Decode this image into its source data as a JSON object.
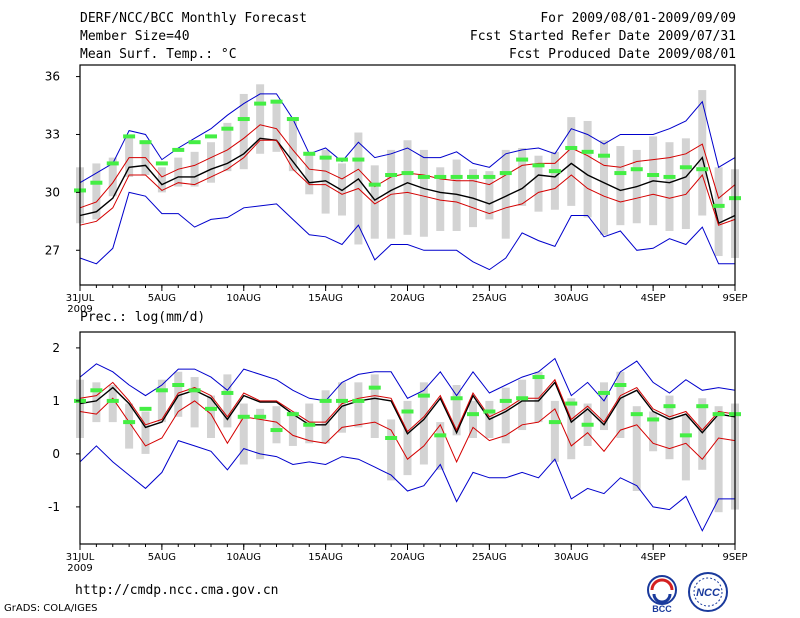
{
  "header": {
    "title": "DERF/NCC/BCC Monthly Forecast",
    "member": "Member Size=40",
    "variable": "Mean Surf. Temp.: °C",
    "period": "For 2009/08/01-2009/09/09",
    "fcst_started": "Fcst Started Refer Date 2009/07/31",
    "fcst_produced": "Fcst Produced Date 2009/08/01"
  },
  "footer": {
    "url": "http://cmdp.ncc.cma.gov.cn",
    "credit": "GrADS: COLA/IGES",
    "logo_left": "BCC",
    "logo_right": "NCC"
  },
  "colors": {
    "box": "#d3d3d3",
    "mean": "#000000",
    "spread": "#d40000",
    "envelope": "#0000cc",
    "obs": "#44ee44"
  },
  "chart_data": [
    {
      "type": "line",
      "title": "Mean Surf. Temp.: °C",
      "ylim": [
        25.2,
        36.6
      ],
      "yticks": [
        27,
        30,
        33,
        36
      ],
      "xlim": [
        0,
        40
      ],
      "xticks": [
        {
          "x": 0,
          "label": "31JUL",
          "sub": "2009"
        },
        {
          "x": 5,
          "label": "5AUG",
          "sub": ""
        },
        {
          "x": 10,
          "label": "10AUG",
          "sub": ""
        },
        {
          "x": 15,
          "label": "15AUG",
          "sub": ""
        },
        {
          "x": 20,
          "label": "20AUG",
          "sub": ""
        },
        {
          "x": 25,
          "label": "25AUG",
          "sub": ""
        },
        {
          "x": 30,
          "label": "30AUG",
          "sub": ""
        },
        {
          "x": 35,
          "label": "4SEP",
          "sub": ""
        },
        {
          "x": 40,
          "label": "9SEP",
          "sub": ""
        }
      ],
      "series": [
        {
          "name": "mean",
          "values": [
            28.8,
            29.0,
            29.7,
            31.3,
            31.4,
            30.4,
            30.8,
            30.8,
            31.2,
            31.5,
            32.0,
            32.8,
            32.7,
            31.6,
            30.5,
            30.6,
            30.1,
            30.7,
            29.6,
            30.1,
            30.5,
            30.2,
            30.0,
            29.9,
            29.7,
            29.4,
            29.8,
            30.2,
            30.9,
            30.8,
            31.5,
            30.9,
            30.5,
            30.1,
            30.3,
            30.6,
            30.5,
            30.8,
            31.8,
            28.4,
            28.8
          ]
        },
        {
          "name": "upper_spread",
          "values": [
            29.2,
            29.5,
            30.5,
            31.8,
            31.8,
            30.8,
            31.2,
            31.4,
            31.8,
            32.2,
            32.8,
            33.5,
            33.3,
            32.2,
            31.2,
            31.1,
            30.7,
            31.2,
            30.3,
            30.8,
            31.0,
            30.9,
            30.7,
            30.6,
            30.6,
            30.4,
            30.9,
            31.4,
            31.5,
            31.5,
            32.3,
            31.9,
            31.4,
            31.3,
            31.6,
            31.7,
            31.8,
            32.0,
            32.5,
            29.7,
            30.4
          ]
        },
        {
          "name": "lower_spread",
          "values": [
            28.3,
            28.5,
            29.2,
            30.9,
            30.9,
            30.1,
            30.5,
            30.4,
            30.8,
            31.2,
            31.8,
            32.7,
            32.7,
            31.2,
            30.4,
            30.4,
            29.9,
            30.2,
            29.4,
            29.9,
            30.0,
            29.8,
            29.6,
            29.5,
            29.2,
            28.9,
            29.2,
            29.4,
            30.0,
            30.2,
            30.9,
            30.2,
            29.8,
            29.5,
            29.7,
            29.9,
            29.7,
            29.9,
            30.9,
            28.3,
            28.6
          ]
        },
        {
          "name": "max_envelope",
          "values": [
            30.5,
            31.0,
            31.5,
            33.2,
            33.0,
            31.7,
            32.3,
            32.8,
            33.3,
            34.0,
            34.6,
            35.1,
            35.1,
            33.8,
            32.0,
            32.3,
            31.6,
            32.6,
            31.8,
            32.0,
            32.3,
            31.8,
            31.8,
            32.1,
            31.5,
            31.3,
            32.0,
            32.2,
            32.3,
            32.0,
            33.3,
            33.0,
            32.5,
            33.0,
            33.0,
            33.0,
            33.3,
            33.7,
            34.7,
            31.3,
            31.8
          ]
        },
        {
          "name": "min_envelope",
          "values": [
            26.6,
            26.3,
            27.1,
            30.0,
            29.8,
            28.9,
            28.9,
            28.2,
            28.6,
            28.7,
            29.2,
            29.3,
            29.4,
            28.6,
            27.8,
            27.7,
            27.3,
            28.3,
            26.5,
            27.3,
            27.3,
            27.0,
            27.0,
            27.0,
            26.4,
            26.0,
            26.6,
            27.9,
            27.5,
            27.2,
            28.8,
            28.8,
            27.7,
            28.0,
            27.0,
            27.1,
            27.6,
            27.3,
            28.2,
            26.3,
            26.3
          ]
        },
        {
          "name": "observed",
          "values": [
            30.1,
            30.5,
            31.5,
            32.9,
            32.6,
            31.5,
            32.2,
            32.6,
            32.9,
            33.3,
            33.8,
            34.6,
            34.7,
            33.8,
            32.0,
            31.8,
            31.7,
            31.7,
            30.4,
            30.9,
            31.0,
            30.8,
            30.8,
            30.8,
            30.8,
            30.8,
            31.0,
            31.7,
            31.4,
            31.1,
            32.3,
            32.1,
            31.9,
            31.0,
            31.2,
            30.9,
            30.8,
            31.3,
            31.2,
            29.3,
            29.7
          ]
        }
      ],
      "boxes": [
        {
          "lo": 28.4,
          "hi": 31.3
        },
        {
          "lo": 28.6,
          "hi": 31.5
        },
        {
          "lo": 29.8,
          "hi": 31.8
        },
        {
          "lo": 30.8,
          "hi": 32.8
        },
        {
          "lo": 30.9,
          "hi": 32.7
        },
        {
          "lo": 30.0,
          "hi": 31.3
        },
        {
          "lo": 30.3,
          "hi": 31.8
        },
        {
          "lo": 30.3,
          "hi": 32.1
        },
        {
          "lo": 30.5,
          "hi": 32.6
        },
        {
          "lo": 31.1,
          "hi": 33.6
        },
        {
          "lo": 31.2,
          "hi": 35.1
        },
        {
          "lo": 32.0,
          "hi": 35.6
        },
        {
          "lo": 32.1,
          "hi": 34.8
        },
        {
          "lo": 31.1,
          "hi": 33.8
        },
        {
          "lo": 29.9,
          "hi": 32.0
        },
        {
          "lo": 28.9,
          "hi": 32.2
        },
        {
          "lo": 28.8,
          "hi": 31.5
        },
        {
          "lo": 27.3,
          "hi": 33.1
        },
        {
          "lo": 27.6,
          "hi": 31.4
        },
        {
          "lo": 27.6,
          "hi": 32.2
        },
        {
          "lo": 27.8,
          "hi": 32.7
        },
        {
          "lo": 27.7,
          "hi": 32.2
        },
        {
          "lo": 28.0,
          "hi": 31.3
        },
        {
          "lo": 28.0,
          "hi": 31.7
        },
        {
          "lo": 28.2,
          "hi": 31.2
        },
        {
          "lo": 28.6,
          "hi": 31.1
        },
        {
          "lo": 27.6,
          "hi": 32.2
        },
        {
          "lo": 29.3,
          "hi": 32.3
        },
        {
          "lo": 29.0,
          "hi": 31.9
        },
        {
          "lo": 29.1,
          "hi": 32.1
        },
        {
          "lo": 29.3,
          "hi": 33.9
        },
        {
          "lo": 28.7,
          "hi": 33.7
        },
        {
          "lo": 27.8,
          "hi": 32.7
        },
        {
          "lo": 28.3,
          "hi": 32.4
        },
        {
          "lo": 28.4,
          "hi": 32.2
        },
        {
          "lo": 28.3,
          "hi": 32.9
        },
        {
          "lo": 28.0,
          "hi": 32.6
        },
        {
          "lo": 28.1,
          "hi": 32.8
        },
        {
          "lo": 28.8,
          "hi": 35.3
        },
        {
          "lo": 26.7,
          "hi": 31.3
        },
        {
          "lo": 26.6,
          "hi": 31.2
        }
      ]
    },
    {
      "type": "line",
      "title": "Prec.: log(mm/d)",
      "ylim": [
        -1.7,
        2.3
      ],
      "yticks": [
        -1,
        0,
        1,
        2
      ],
      "xlim": [
        0,
        40
      ],
      "xticks": [
        {
          "x": 0,
          "label": "31JUL",
          "sub": "2009"
        },
        {
          "x": 5,
          "label": "5AUG",
          "sub": ""
        },
        {
          "x": 10,
          "label": "10AUG",
          "sub": ""
        },
        {
          "x": 15,
          "label": "15AUG",
          "sub": ""
        },
        {
          "x": 20,
          "label": "20AUG",
          "sub": ""
        },
        {
          "x": 25,
          "label": "25AUG",
          "sub": ""
        },
        {
          "x": 30,
          "label": "30AUG",
          "sub": ""
        },
        {
          "x": 35,
          "label": "4SEP",
          "sub": ""
        },
        {
          "x": 40,
          "label": "9SEP",
          "sub": ""
        }
      ],
      "series": [
        {
          "name": "mean",
          "values": [
            0.95,
            1.0,
            1.25,
            0.95,
            0.5,
            0.6,
            1.1,
            1.2,
            1.05,
            0.65,
            1.1,
            0.98,
            0.98,
            0.75,
            0.55,
            0.55,
            0.9,
            1.0,
            1.05,
            1.0,
            0.38,
            0.65,
            1.05,
            0.4,
            1.1,
            0.65,
            0.8,
            1.0,
            1.0,
            1.35,
            0.6,
            0.85,
            0.55,
            1.05,
            1.2,
            0.8,
            0.65,
            0.75,
            0.4,
            0.75,
            0.7
          ]
        },
        {
          "name": "upper_spread",
          "values": [
            1.05,
            1.1,
            1.35,
            1.0,
            0.55,
            0.65,
            1.15,
            1.25,
            1.1,
            0.7,
            1.15,
            1.0,
            1.0,
            0.8,
            0.6,
            0.6,
            0.95,
            1.05,
            1.1,
            1.05,
            0.42,
            0.7,
            1.1,
            0.45,
            1.15,
            0.7,
            0.85,
            1.05,
            1.05,
            1.4,
            0.65,
            0.9,
            0.6,
            1.1,
            1.25,
            0.85,
            0.7,
            0.8,
            0.45,
            0.8,
            0.75
          ]
        },
        {
          "name": "lower_spread",
          "values": [
            0.8,
            0.75,
            1.05,
            0.6,
            0.15,
            0.3,
            0.8,
            1.0,
            0.75,
            0.2,
            0.7,
            0.65,
            0.6,
            0.35,
            0.25,
            0.2,
            0.5,
            0.55,
            0.6,
            0.45,
            -0.1,
            0.15,
            0.55,
            -0.15,
            0.5,
            0.25,
            0.35,
            0.55,
            0.6,
            0.85,
            0.15,
            0.4,
            0.05,
            0.45,
            0.55,
            0.2,
            0.1,
            0.2,
            -0.1,
            0.3,
            0.25
          ]
        },
        {
          "name": "max_envelope",
          "values": [
            1.45,
            1.7,
            1.55,
            1.3,
            1.1,
            1.3,
            1.6,
            1.6,
            1.45,
            1.2,
            1.6,
            1.5,
            1.4,
            1.2,
            1.05,
            1.0,
            1.35,
            1.5,
            1.55,
            1.55,
            1.05,
            1.2,
            1.55,
            1.1,
            1.55,
            1.15,
            1.3,
            1.45,
            1.55,
            1.8,
            1.1,
            1.35,
            1.0,
            1.55,
            1.75,
            1.35,
            1.15,
            1.4,
            1.2,
            1.25,
            1.2
          ]
        },
        {
          "name": "min_envelope",
          "values": [
            -0.15,
            0.15,
            -0.15,
            -0.4,
            -0.65,
            -0.35,
            0.25,
            0.15,
            0.05,
            -0.3,
            0.1,
            0.0,
            -0.05,
            -0.2,
            -0.15,
            -0.2,
            -0.05,
            -0.1,
            -0.25,
            -0.4,
            -0.7,
            -0.6,
            -0.2,
            -0.9,
            -0.35,
            -0.45,
            -0.45,
            -0.35,
            -0.45,
            -0.1,
            -0.85,
            -0.65,
            -0.75,
            -0.45,
            -0.6,
            -1.0,
            -1.05,
            -0.8,
            -1.45,
            -0.85,
            -0.85
          ]
        },
        {
          "name": "observed",
          "values": [
            1.0,
            1.2,
            1.0,
            0.6,
            0.85,
            1.2,
            1.3,
            1.2,
            0.85,
            1.15,
            0.7,
            0.7,
            0.45,
            0.75,
            0.55,
            1.0,
            1.0,
            1.0,
            1.25,
            0.3,
            0.8,
            1.1,
            0.35,
            1.05,
            0.75,
            0.8,
            1.0,
            1.05,
            1.45,
            0.6,
            0.95,
            0.55,
            1.15,
            1.3,
            0.75,
            0.65,
            0.9,
            0.35,
            0.9,
            0.75,
            0.75
          ]
        }
      ],
      "boxes": [
        {
          "lo": 0.3,
          "hi": 1.4
        },
        {
          "lo": 0.6,
          "hi": 1.35
        },
        {
          "lo": 0.6,
          "hi": 1.3
        },
        {
          "lo": 0.1,
          "hi": 0.95
        },
        {
          "lo": 0.0,
          "hi": 0.8
        },
        {
          "lo": 0.6,
          "hi": 1.4
        },
        {
          "lo": 0.7,
          "hi": 1.55
        },
        {
          "lo": 0.5,
          "hi": 1.45
        },
        {
          "lo": 0.3,
          "hi": 1.1
        },
        {
          "lo": 0.5,
          "hi": 1.5
        },
        {
          "lo": -0.2,
          "hi": 0.95
        },
        {
          "lo": -0.1,
          "hi": 0.85
        },
        {
          "lo": 0.2,
          "hi": 0.9
        },
        {
          "lo": 0.15,
          "hi": 0.8
        },
        {
          "lo": 0.2,
          "hi": 0.95
        },
        {
          "lo": 0.2,
          "hi": 1.2
        },
        {
          "lo": 0.4,
          "hi": 1.35
        },
        {
          "lo": 0.5,
          "hi": 1.35
        },
        {
          "lo": 0.3,
          "hi": 1.5
        },
        {
          "lo": -0.5,
          "hi": 0.65
        },
        {
          "lo": -0.4,
          "hi": 1.0
        },
        {
          "lo": -0.2,
          "hi": 1.35
        },
        {
          "lo": -0.3,
          "hi": 0.6
        },
        {
          "lo": 0.35,
          "hi": 1.3
        },
        {
          "lo": 0.3,
          "hi": 1.0
        },
        {
          "lo": 0.3,
          "hi": 1.0
        },
        {
          "lo": 0.2,
          "hi": 1.25
        },
        {
          "lo": 0.45,
          "hi": 1.4
        },
        {
          "lo": 0.6,
          "hi": 1.55
        },
        {
          "lo": -0.15,
          "hi": 1.0
        },
        {
          "lo": -0.1,
          "hi": 1.05
        },
        {
          "lo": 0.15,
          "hi": 0.95
        },
        {
          "lo": 0.45,
          "hi": 1.35
        },
        {
          "lo": 0.3,
          "hi": 1.55
        },
        {
          "lo": -0.7,
          "hi": 0.9
        },
        {
          "lo": 0.05,
          "hi": 0.8
        },
        {
          "lo": -0.1,
          "hi": 1.1
        },
        {
          "lo": -0.5,
          "hi": 0.75
        },
        {
          "lo": -0.3,
          "hi": 1.05
        },
        {
          "lo": -1.1,
          "hi": 0.9
        },
        {
          "lo": -1.05,
          "hi": 0.95
        }
      ]
    }
  ]
}
